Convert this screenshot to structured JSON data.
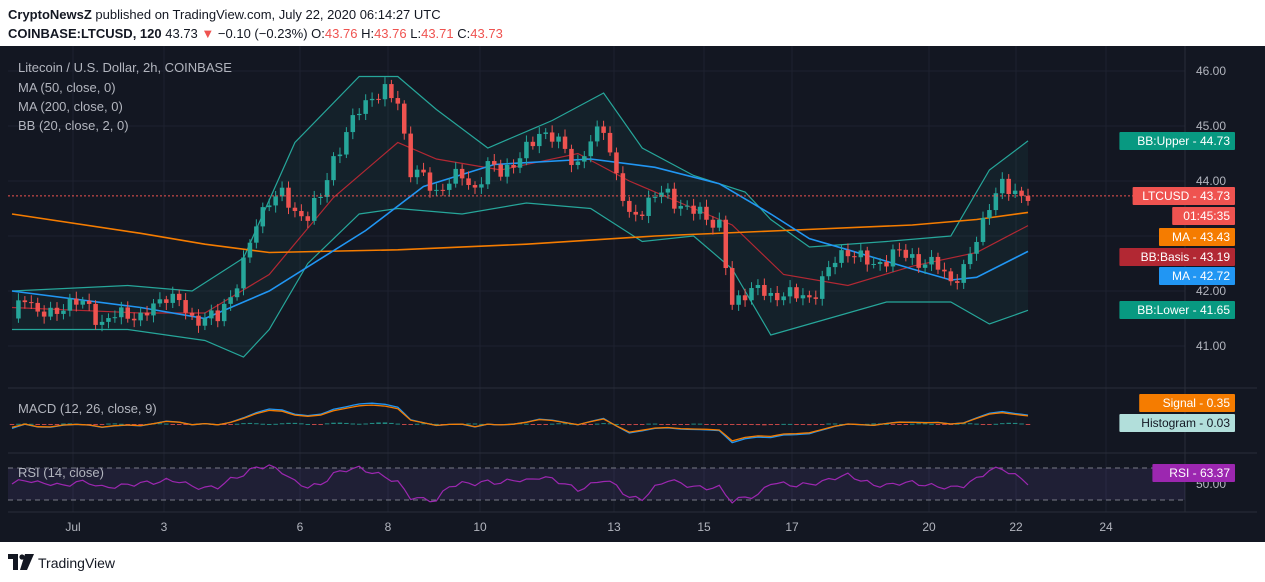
{
  "header": {
    "publisher_name": "CryptoNewsZ",
    "publisher_text": "published on TradingView.com, July 22, 2020 06:14:27 UTC",
    "symbol": "COINBASE:LTCUSD, 120",
    "last": "43.73",
    "change": "−0.10 (−0.23%)",
    "o_label": "O:",
    "o_value": "43.76",
    "h_label": "H:",
    "h_value": "43.76",
    "l_label": "L:",
    "l_value": "43.71",
    "c_label": "C:",
    "c_value": "43.73"
  },
  "legend": {
    "title": "Litecoin / U.S. Dollar, 2h, COINBASE",
    "ma50": "MA (50, close, 0)",
    "ma200": "MA (200, close, 0)",
    "bb": "BB (20, close, 2, 0)",
    "macd": "MACD (12, 26, close, 9)",
    "rsi": "RSI (14, close)"
  },
  "badges": [
    {
      "label": "BB:Upper",
      "value": "44.73",
      "color": "#089981"
    },
    {
      "label": "LTCUSD",
      "value": "43.73",
      "color": "#ef5350"
    },
    {
      "label": "",
      "value": "01:45:35",
      "color": "#ef5350"
    },
    {
      "label": "MA",
      "value": "43.43",
      "color": "#f57c00"
    },
    {
      "label": "BB:Basis",
      "value": "43.19",
      "color": "#b22833"
    },
    {
      "label": "MA",
      "value": "42.72",
      "color": "#2196f3"
    },
    {
      "label": "BB:Lower",
      "value": "41.65",
      "color": "#089981"
    },
    {
      "label": "Signal",
      "value": "0.35",
      "color": "#f57c00"
    },
    {
      "label": "Histogram",
      "value": "0.03",
      "color": "#b2dfdb"
    },
    {
      "label": "RSI",
      "value": "63.37",
      "color": "#9c27b0"
    }
  ],
  "footer": {
    "brand": "TradingView"
  },
  "colors": {
    "background": "#131722",
    "grid": "#1e2230",
    "up": "#26a69a",
    "down": "#ef5350",
    "ma50": "#2196f3",
    "ma200": "#f57c00",
    "bb_basis": "#b22833",
    "bb_band": "#26a69a",
    "rsi": "#9c27b0"
  },
  "chart_data": [
    {
      "type": "candlestick",
      "title": "Litecoin / U.S. Dollar, 2h, COINBASE",
      "x_ticks": [
        "Jul",
        "3",
        "6",
        "8",
        "10",
        "13",
        "15",
        "17",
        "20",
        "22",
        "24"
      ],
      "y_ticks": [
        "46.00",
        "45.00",
        "44.00",
        "42.00",
        "41.00"
      ],
      "ylim": [
        40.3,
        46.5
      ],
      "last_price": 43.73,
      "series": [
        {
          "name": "LTCUSD",
          "close_points": [
            [
              0,
              41.5
            ],
            [
              2,
              41.95
            ],
            [
              4,
              41.6
            ],
            [
              6,
              41.55
            ],
            [
              8,
              41.75
            ],
            [
              10,
              41.8
            ],
            [
              12,
              41.7
            ],
            [
              14,
              41.4
            ],
            [
              16,
              41.55
            ],
            [
              18,
              41.6
            ],
            [
              20,
              41.5
            ],
            [
              22,
              41.7
            ],
            [
              24,
              41.95
            ],
            [
              26,
              41.8
            ],
            [
              28,
              41.45
            ],
            [
              30,
              41.55
            ],
            [
              32,
              41.5
            ],
            [
              34,
              41.9
            ],
            [
              36,
              42.5
            ],
            [
              38,
              43.2
            ],
            [
              40,
              43.7
            ],
            [
              42,
              43.75
            ],
            [
              44,
              43.4
            ],
            [
              46,
              43.4
            ],
            [
              48,
              43.7
            ],
            [
              50,
              44.4
            ],
            [
              52,
              44.85
            ],
            [
              54,
              45.3
            ],
            [
              56,
              45.55
            ],
            [
              58,
              45.6
            ],
            [
              60,
              45.45
            ],
            [
              62,
              44.2
            ],
            [
              64,
              44.05
            ],
            [
              66,
              43.8
            ],
            [
              68,
              44.0
            ],
            [
              70,
              44.1
            ],
            [
              72,
              43.85
            ],
            [
              74,
              44.25
            ],
            [
              76,
              44.2
            ],
            [
              78,
              44.3
            ],
            [
              80,
              44.55
            ],
            [
              82,
              44.9
            ],
            [
              84,
              44.8
            ],
            [
              86,
              44.55
            ],
            [
              88,
              44.3
            ],
            [
              90,
              44.7
            ],
            [
              92,
              45.0
            ],
            [
              94,
              44.1
            ],
            [
              96,
              43.3
            ],
            [
              98,
              43.5
            ],
            [
              100,
              43.75
            ],
            [
              102,
              43.75
            ],
            [
              104,
              43.55
            ],
            [
              106,
              43.45
            ],
            [
              108,
              43.35
            ],
            [
              110,
              43.2
            ],
            [
              112,
              41.7
            ],
            [
              114,
              42.0
            ],
            [
              116,
              42.05
            ],
            [
              118,
              41.85
            ],
            [
              120,
              42.0
            ],
            [
              122,
              41.9
            ],
            [
              124,
              41.85
            ],
            [
              126,
              42.2
            ],
            [
              128,
              42.55
            ],
            [
              130,
              42.75
            ],
            [
              132,
              42.6
            ],
            [
              134,
              42.45
            ],
            [
              136,
              42.6
            ],
            [
              138,
              42.7
            ],
            [
              140,
              42.6
            ],
            [
              142,
              42.5
            ],
            [
              144,
              42.45
            ],
            [
              146,
              42.2
            ],
            [
              148,
              42.35
            ],
            [
              150,
              42.95
            ],
            [
              152,
              43.6
            ],
            [
              154,
              43.9
            ],
            [
              156,
              43.8
            ],
            [
              158,
              43.73
            ]
          ]
        },
        {
          "name": "MA (50, close, 0)",
          "points": [
            [
              0,
              42.0
            ],
            [
              20,
              41.7
            ],
            [
              30,
              41.5
            ],
            [
              40,
              42.0
            ],
            [
              55,
              43.1
            ],
            [
              64,
              43.9
            ],
            [
              75,
              44.3
            ],
            [
              90,
              44.4
            ],
            [
              100,
              44.25
            ],
            [
              110,
              43.95
            ],
            [
              118,
              43.4
            ],
            [
              124,
              42.95
            ],
            [
              130,
              42.75
            ],
            [
              140,
              42.4
            ],
            [
              146,
              42.2
            ],
            [
              150,
              42.25
            ],
            [
              158,
              42.72
            ]
          ]
        },
        {
          "name": "MA (200, close, 0)",
          "points": [
            [
              0,
              43.4
            ],
            [
              20,
              43.05
            ],
            [
              30,
              42.85
            ],
            [
              40,
              42.7
            ],
            [
              60,
              42.75
            ],
            [
              80,
              42.85
            ],
            [
              100,
              43.0
            ],
            [
              120,
              43.1
            ],
            [
              140,
              43.2
            ],
            [
              150,
              43.3
            ],
            [
              158,
              43.43
            ]
          ]
        },
        {
          "name": "BB (20, close, 2, 0)",
          "basis": [
            [
              0,
              41.7
            ],
            [
              20,
              41.6
            ],
            [
              30,
              41.6
            ],
            [
              40,
              42.3
            ],
            [
              50,
              43.7
            ],
            [
              60,
              44.7
            ],
            [
              66,
              44.4
            ],
            [
              76,
              44.2
            ],
            [
              88,
              44.5
            ],
            [
              96,
              44.0
            ],
            [
              104,
              43.6
            ],
            [
              112,
              43.2
            ],
            [
              120,
              42.3
            ],
            [
              130,
              42.1
            ],
            [
              140,
              42.45
            ],
            [
              150,
              42.7
            ],
            [
              158,
              43.19
            ]
          ],
          "upper": [
            [
              0,
              42.0
            ],
            [
              18,
              42.1
            ],
            [
              28,
              42.0
            ],
            [
              36,
              42.6
            ],
            [
              44,
              44.7
            ],
            [
              54,
              45.9
            ],
            [
              60,
              45.9
            ],
            [
              66,
              45.3
            ],
            [
              74,
              44.6
            ],
            [
              84,
              45.1
            ],
            [
              92,
              45.6
            ],
            [
              98,
              44.6
            ],
            [
              106,
              44.1
            ],
            [
              114,
              43.8
            ],
            [
              118,
              43.3
            ],
            [
              124,
              42.8
            ],
            [
              136,
              42.9
            ],
            [
              146,
              43.0
            ],
            [
              152,
              44.2
            ],
            [
              158,
              44.73
            ]
          ],
          "lower": [
            [
              0,
              41.3
            ],
            [
              18,
              41.3
            ],
            [
              30,
              41.1
            ],
            [
              36,
              40.8
            ],
            [
              40,
              41.3
            ],
            [
              46,
              42.5
            ],
            [
              54,
              43.4
            ],
            [
              60,
              43.5
            ],
            [
              70,
              43.4
            ],
            [
              80,
              43.6
            ],
            [
              90,
              43.5
            ],
            [
              98,
              42.9
            ],
            [
              106,
              43.0
            ],
            [
              112,
              42.4
            ],
            [
              118,
              41.2
            ],
            [
              124,
              41.4
            ],
            [
              136,
              41.8
            ],
            [
              146,
              41.8
            ],
            [
              152,
              41.4
            ],
            [
              158,
              41.65
            ]
          ]
        }
      ]
    },
    {
      "type": "line",
      "title": "MACD (12, 26, close, 9)",
      "series": [
        {
          "name": "Signal",
          "last_value": 0.35
        },
        {
          "name": "Histogram",
          "last_value": 0.03
        }
      ]
    },
    {
      "type": "line",
      "title": "RSI (14, close)",
      "y_ticks": [
        "50.00"
      ],
      "series": [
        {
          "name": "RSI",
          "last_value": 63.37
        }
      ]
    }
  ]
}
